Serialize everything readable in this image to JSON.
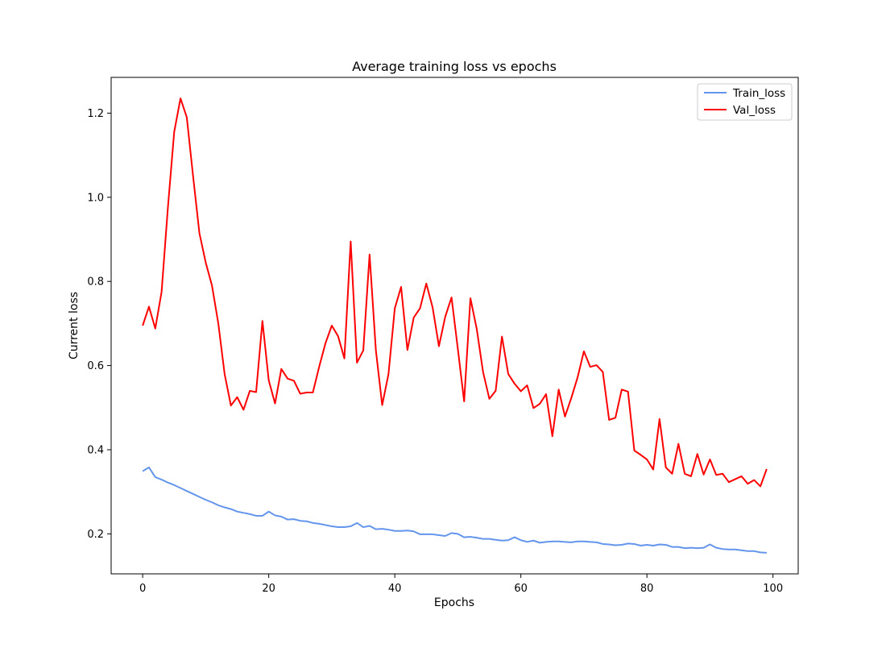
{
  "chart_data": {
    "type": "line",
    "title": "Average training loss vs epochs",
    "xlabel": "Epochs",
    "ylabel": "Current loss",
    "xlim": [
      -5,
      104
    ],
    "ylim": [
      0.105,
      1.285
    ],
    "xticks": [
      0,
      20,
      40,
      60,
      80,
      100
    ],
    "yticks": [
      0.2,
      0.4,
      0.6,
      0.8,
      1.0,
      1.2
    ],
    "xtick_labels": [
      "0",
      "20",
      "40",
      "60",
      "80",
      "100"
    ],
    "ytick_labels": [
      "0.2",
      "0.4",
      "0.6",
      "0.8",
      "1.0",
      "1.2"
    ],
    "grid": false,
    "legend_position": "upper right",
    "x": [
      0,
      1,
      2,
      3,
      4,
      5,
      6,
      7,
      8,
      9,
      10,
      11,
      12,
      13,
      14,
      15,
      16,
      17,
      18,
      19,
      20,
      21,
      22,
      23,
      24,
      25,
      26,
      27,
      28,
      29,
      30,
      31,
      32,
      33,
      34,
      35,
      36,
      37,
      38,
      39,
      40,
      41,
      42,
      43,
      44,
      45,
      46,
      47,
      48,
      49,
      50,
      51,
      52,
      53,
      54,
      55,
      56,
      57,
      58,
      59,
      60,
      61,
      62,
      63,
      64,
      65,
      66,
      67,
      68,
      69,
      70,
      71,
      72,
      73,
      74,
      75,
      76,
      77,
      78,
      79,
      80,
      81,
      82,
      83,
      84,
      85,
      86,
      87,
      88,
      89,
      90,
      91,
      92,
      93,
      94,
      95,
      96,
      97,
      98,
      99
    ],
    "series": [
      {
        "name": "Train_loss",
        "color": "#6495ED",
        "values": [
          0.349,
          0.358,
          0.335,
          0.329,
          0.322,
          0.316,
          0.309,
          0.302,
          0.295,
          0.288,
          0.281,
          0.275,
          0.268,
          0.263,
          0.259,
          0.253,
          0.25,
          0.247,
          0.243,
          0.243,
          0.253,
          0.244,
          0.241,
          0.234,
          0.235,
          0.231,
          0.23,
          0.226,
          0.224,
          0.221,
          0.218,
          0.216,
          0.216,
          0.218,
          0.226,
          0.216,
          0.219,
          0.211,
          0.212,
          0.21,
          0.207,
          0.207,
          0.208,
          0.206,
          0.199,
          0.199,
          0.199,
          0.197,
          0.195,
          0.202,
          0.2,
          0.192,
          0.193,
          0.191,
          0.188,
          0.188,
          0.186,
          0.184,
          0.185,
          0.192,
          0.185,
          0.181,
          0.184,
          0.179,
          0.181,
          0.182,
          0.182,
          0.181,
          0.18,
          0.182,
          0.182,
          0.181,
          0.18,
          0.176,
          0.175,
          0.173,
          0.174,
          0.177,
          0.176,
          0.172,
          0.174,
          0.172,
          0.175,
          0.174,
          0.169,
          0.169,
          0.166,
          0.167,
          0.166,
          0.167,
          0.175,
          0.167,
          0.164,
          0.163,
          0.163,
          0.161,
          0.159,
          0.159,
          0.156,
          0.155
        ]
      },
      {
        "name": "Val_loss",
        "color": "#FF0000",
        "values": [
          0.695,
          0.74,
          0.688,
          0.775,
          0.975,
          1.155,
          1.235,
          1.19,
          1.05,
          0.915,
          0.845,
          0.79,
          0.7,
          0.58,
          0.505,
          0.525,
          0.495,
          0.54,
          0.537,
          0.706,
          0.565,
          0.51,
          0.592,
          0.569,
          0.564,
          0.533,
          0.536,
          0.536,
          0.597,
          0.653,
          0.695,
          0.67,
          0.617,
          0.895,
          0.607,
          0.636,
          0.864,
          0.636,
          0.506,
          0.58,
          0.736,
          0.787,
          0.637,
          0.714,
          0.736,
          0.795,
          0.738,
          0.646,
          0.716,
          0.762,
          0.64,
          0.515,
          0.76,
          0.687,
          0.585,
          0.521,
          0.54,
          0.669,
          0.58,
          0.557,
          0.539,
          0.553,
          0.499,
          0.509,
          0.532,
          0.432,
          0.543,
          0.479,
          0.523,
          0.572,
          0.634,
          0.597,
          0.601,
          0.585,
          0.471,
          0.476,
          0.543,
          0.538,
          0.398,
          0.388,
          0.377,
          0.353,
          0.473,
          0.358,
          0.343,
          0.414,
          0.343,
          0.337,
          0.39,
          0.341,
          0.377,
          0.34,
          0.343,
          0.323,
          0.33,
          0.337,
          0.319,
          0.328,
          0.313,
          0.354
        ]
      }
    ]
  }
}
